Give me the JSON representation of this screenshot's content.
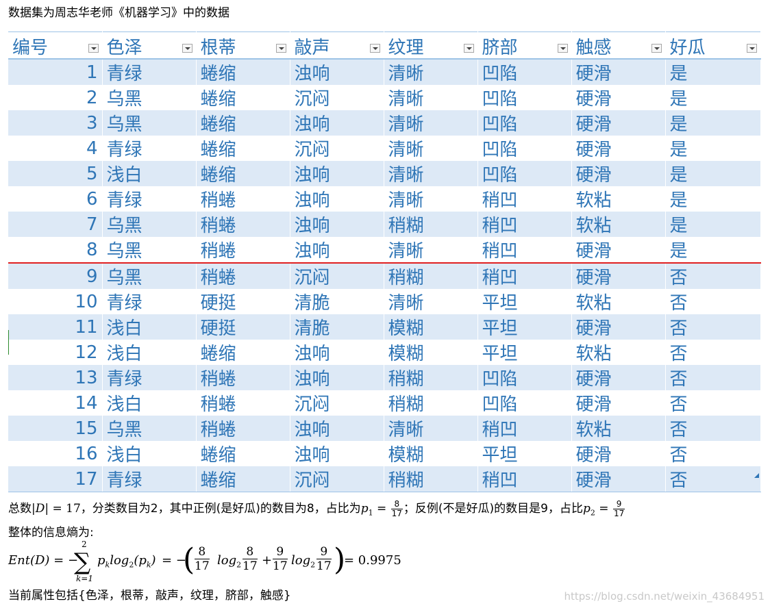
{
  "intro_text": "数据集为周志华老师《机器学习》中的数据",
  "table": {
    "headers": [
      "编号",
      "色泽",
      "根蒂",
      "敲声",
      "纹理",
      "脐部",
      "触感",
      "好瓜"
    ],
    "rows": [
      [
        "1",
        "青绿",
        "蜷缩",
        "浊响",
        "清晰",
        "凹陷",
        "硬滑",
        "是"
      ],
      [
        "2",
        "乌黑",
        "蜷缩",
        "沉闷",
        "清晰",
        "凹陷",
        "硬滑",
        "是"
      ],
      [
        "3",
        "乌黑",
        "蜷缩",
        "浊响",
        "清晰",
        "凹陷",
        "硬滑",
        "是"
      ],
      [
        "4",
        "青绿",
        "蜷缩",
        "沉闷",
        "清晰",
        "凹陷",
        "硬滑",
        "是"
      ],
      [
        "5",
        "浅白",
        "蜷缩",
        "浊响",
        "清晰",
        "凹陷",
        "硬滑",
        "是"
      ],
      [
        "6",
        "青绿",
        "稍蜷",
        "浊响",
        "清晰",
        "稍凹",
        "软粘",
        "是"
      ],
      [
        "7",
        "乌黑",
        "稍蜷",
        "浊响",
        "稍糊",
        "稍凹",
        "软粘",
        "是"
      ],
      [
        "8",
        "乌黑",
        "稍蜷",
        "浊响",
        "清晰",
        "稍凹",
        "硬滑",
        "是"
      ],
      [
        "9",
        "乌黑",
        "稍蜷",
        "沉闷",
        "稍糊",
        "稍凹",
        "硬滑",
        "否"
      ],
      [
        "10",
        "青绿",
        "硬挺",
        "清脆",
        "清晰",
        "平坦",
        "软粘",
        "否"
      ],
      [
        "11",
        "浅白",
        "硬挺",
        "清脆",
        "模糊",
        "平坦",
        "硬滑",
        "否"
      ],
      [
        "12",
        "浅白",
        "蜷缩",
        "浊响",
        "模糊",
        "平坦",
        "软粘",
        "否"
      ],
      [
        "13",
        "青绿",
        "稍蜷",
        "浊响",
        "稍糊",
        "凹陷",
        "硬滑",
        "否"
      ],
      [
        "14",
        "浅白",
        "稍蜷",
        "沉闷",
        "稍糊",
        "凹陷",
        "硬滑",
        "否"
      ],
      [
        "15",
        "乌黑",
        "稍蜷",
        "浊响",
        "清晰",
        "稍凹",
        "软粘",
        "否"
      ],
      [
        "16",
        "浅白",
        "蜷缩",
        "浊响",
        "模糊",
        "平坦",
        "硬滑",
        "否"
      ],
      [
        "17",
        "青绿",
        "蜷缩",
        "沉闷",
        "稍糊",
        "稍凹",
        "硬滑",
        "否"
      ]
    ],
    "split_after_row": 8,
    "colors": {
      "text": "#2e75b6",
      "band": "#dde9f6",
      "split_line": "#e02020"
    }
  },
  "line1": {
    "a": "总数",
    "D_abs": "|D|",
    "eq17": " = 17",
    "b": "，分类数目为2，其中正例(是好瓜)的数目为8，占比为",
    "p1": "p",
    "p1_sub": "1",
    "eq": " = ",
    "p1_num": "8",
    "p1_den": "17",
    "c": "；反例(不是好瓜)的数目是9，占比",
    "p2": "p",
    "p2_sub": "2",
    "p2_num": "9",
    "p2_den": "17"
  },
  "line2": "整体的信息熵为:",
  "formula": {
    "lhs": "Ent(D) = −",
    "sum_top": "2",
    "sum_bottom": "k=1",
    "term": "p",
    "term_sub": "k",
    "log": "log",
    "log_sub": "2",
    "arg": "(p",
    "arg_sub": "k",
    "arg_close": ")",
    "eq_minus": " = −",
    "f1_num": "8",
    "f1_den": "17",
    "f2_num": "8",
    "f2_den": "17",
    "plus": "+",
    "f3_num": "9",
    "f3_den": "17",
    "f4_num": "9",
    "f4_den": "17",
    "result": " = 0.9975"
  },
  "line3": "当前属性包括{色泽，根蒂，敲声，纹理，脐部，触感}",
  "watermark": "https://blog.csdn.net/weixin_43684951"
}
